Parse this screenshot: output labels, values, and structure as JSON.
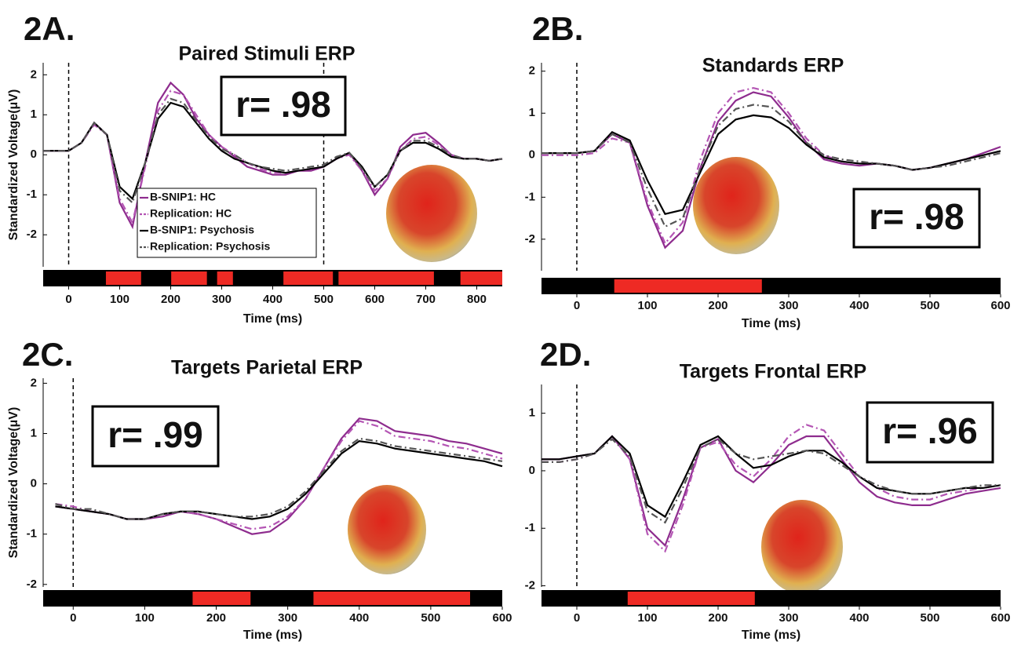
{
  "chart_data": [
    {
      "type": "line",
      "panel_label": "2A.",
      "title": "Paired Stimuli ERP",
      "annotation": "r= .98",
      "xlabel": "Time (ms)",
      "ylabel": "Standardized Voltage(μV)",
      "legend": "center left",
      "xlim": [
        -50,
        850
      ],
      "ylim": [
        -2.8,
        2.3
      ],
      "xticks": [
        0,
        100,
        200,
        300,
        400,
        500,
        600,
        700,
        800
      ],
      "yticks": [
        -2,
        -1,
        0,
        1,
        2
      ],
      "markers": [
        0,
        500
      ],
      "significant_intervals": [
        [
          73,
          142
        ],
        [
          201,
          271
        ],
        [
          291,
          322
        ],
        [
          421,
          518
        ],
        [
          529,
          716
        ],
        [
          768,
          850
        ]
      ],
      "x": [
        -50,
        -25,
        0,
        25,
        50,
        75,
        100,
        125,
        150,
        175,
        200,
        225,
        250,
        275,
        300,
        325,
        350,
        375,
        400,
        425,
        450,
        475,
        500,
        525,
        550,
        575,
        600,
        625,
        650,
        675,
        700,
        725,
        750,
        775,
        800,
        825,
        850
      ],
      "series": [
        {
          "name": "B-SNIP1: HC",
          "color": "#8e2c8e",
          "dash": "solid",
          "values": [
            0.1,
            0.1,
            0.1,
            0.3,
            0.8,
            0.5,
            -1.2,
            -1.8,
            -0.2,
            1.3,
            1.8,
            1.5,
            0.9,
            0.5,
            0.2,
            -0.05,
            -0.3,
            -0.4,
            -0.5,
            -0.5,
            -0.4,
            -0.4,
            -0.3,
            -0.1,
            0.05,
            -0.4,
            -1.0,
            -0.6,
            0.2,
            0.5,
            0.55,
            0.3,
            0.0,
            -0.1,
            -0.1,
            -0.15,
            -0.1
          ]
        },
        {
          "name": "Replication: HC",
          "color": "#b455b4",
          "dash": "dashdot",
          "values": [
            0.1,
            0.1,
            0.1,
            0.3,
            0.75,
            0.5,
            -1.1,
            -1.7,
            -0.3,
            1.1,
            1.6,
            1.5,
            1.0,
            0.5,
            0.2,
            0.0,
            -0.2,
            -0.35,
            -0.45,
            -0.45,
            -0.4,
            -0.35,
            -0.3,
            -0.1,
            0.0,
            -0.4,
            -0.9,
            -0.6,
            0.1,
            0.4,
            0.45,
            0.25,
            0.0,
            -0.1,
            -0.1,
            -0.15,
            -0.1
          ]
        },
        {
          "name": "B-SNIP1: Psychosis",
          "color": "#000000",
          "dash": "solid",
          "values": [
            0.1,
            0.1,
            0.1,
            0.3,
            0.8,
            0.5,
            -0.8,
            -1.1,
            -0.2,
            0.9,
            1.3,
            1.2,
            0.8,
            0.4,
            0.1,
            -0.1,
            -0.2,
            -0.3,
            -0.4,
            -0.45,
            -0.4,
            -0.35,
            -0.3,
            -0.1,
            0.05,
            -0.3,
            -0.8,
            -0.5,
            0.1,
            0.3,
            0.3,
            0.15,
            -0.05,
            -0.1,
            -0.1,
            -0.15,
            -0.1
          ]
        },
        {
          "name": "Replication: Psychosis",
          "color": "#555555",
          "dash": "dashdot",
          "values": [
            0.1,
            0.1,
            0.1,
            0.3,
            0.8,
            0.5,
            -0.9,
            -1.2,
            -0.2,
            1.0,
            1.4,
            1.3,
            0.85,
            0.45,
            0.15,
            0.0,
            -0.2,
            -0.3,
            -0.35,
            -0.4,
            -0.35,
            -0.3,
            -0.25,
            -0.05,
            0.05,
            -0.35,
            -0.8,
            -0.5,
            0.1,
            0.35,
            0.35,
            0.2,
            0.0,
            -0.1,
            -0.1,
            -0.15,
            -0.1
          ]
        }
      ]
    },
    {
      "type": "line",
      "panel_label": "2B.",
      "title": "Standards ERP",
      "annotation": "r= .98",
      "xlabel": "Time (ms)",
      "xlim": [
        -50,
        600
      ],
      "ylim": [
        -2.75,
        2.2
      ],
      "xticks": [
        0,
        100,
        200,
        300,
        400,
        500,
        600
      ],
      "yticks": [
        -2,
        -1,
        0,
        1,
        2
      ],
      "markers": [
        0
      ],
      "significant_intervals": [
        [
          53,
          262
        ]
      ],
      "x": [
        -50,
        -25,
        0,
        25,
        50,
        75,
        100,
        125,
        150,
        175,
        200,
        225,
        250,
        275,
        300,
        325,
        350,
        375,
        400,
        425,
        450,
        475,
        500,
        525,
        550,
        575,
        600
      ],
      "series": [
        {
          "color": "#8e2c8e",
          "dash": "solid",
          "values": [
            0.05,
            0.05,
            0.05,
            0.1,
            0.5,
            0.3,
            -1.2,
            -2.2,
            -1.8,
            -0.3,
            0.8,
            1.3,
            1.5,
            1.4,
            0.9,
            0.3,
            -0.1,
            -0.2,
            -0.25,
            -0.2,
            -0.25,
            -0.35,
            -0.3,
            -0.2,
            -0.1,
            0.05,
            0.2
          ]
        },
        {
          "color": "#b455b4",
          "dash": "dashdot",
          "values": [
            0,
            0,
            0,
            0.05,
            0.4,
            0.3,
            -1.1,
            -2.1,
            -1.6,
            -0.1,
            1.0,
            1.5,
            1.6,
            1.5,
            1.0,
            0.4,
            0.0,
            -0.15,
            -0.2,
            -0.2,
            -0.25,
            -0.35,
            -0.3,
            -0.2,
            -0.1,
            0.0,
            0.1
          ]
        },
        {
          "color": "#000000",
          "dash": "solid",
          "values": [
            0.05,
            0.05,
            0.05,
            0.1,
            0.55,
            0.35,
            -0.6,
            -1.4,
            -1.3,
            -0.4,
            0.5,
            0.85,
            0.95,
            0.9,
            0.65,
            0.25,
            -0.05,
            -0.15,
            -0.2,
            -0.2,
            -0.25,
            -0.35,
            -0.3,
            -0.2,
            -0.1,
            0.0,
            0.1
          ]
        },
        {
          "color": "#555555",
          "dash": "dashdot",
          "values": [
            0.05,
            0.05,
            0.05,
            0.1,
            0.5,
            0.3,
            -0.8,
            -1.7,
            -1.5,
            -0.3,
            0.7,
            1.1,
            1.2,
            1.15,
            0.8,
            0.3,
            0.0,
            -0.1,
            -0.15,
            -0.2,
            -0.25,
            -0.35,
            -0.3,
            -0.25,
            -0.15,
            -0.05,
            0.05
          ]
        }
      ]
    },
    {
      "type": "line",
      "panel_label": "2C.",
      "title": "Targets Parietal ERP",
      "annotation": "r= .99",
      "xlabel": "Time (ms)",
      "ylabel": "Standardized Voltage(μV)",
      "xlim": [
        -42,
        600
      ],
      "ylim": [
        -2.05,
        2.1
      ],
      "xticks": [
        0,
        100,
        200,
        300,
        400,
        500,
        600
      ],
      "yticks": [
        -2,
        -1,
        0,
        1,
        2
      ],
      "markers": [
        0
      ],
      "significant_intervals": [
        [
          167,
          248
        ],
        [
          336,
          555
        ]
      ],
      "x": [
        -25,
        0,
        25,
        50,
        75,
        100,
        125,
        150,
        175,
        200,
        225,
        250,
        275,
        300,
        325,
        350,
        375,
        400,
        425,
        450,
        475,
        500,
        525,
        550,
        575,
        600
      ],
      "series": [
        {
          "color": "#8e2c8e",
          "dash": "solid",
          "values": [
            -0.45,
            -0.5,
            -0.55,
            -0.6,
            -0.7,
            -0.7,
            -0.65,
            -0.55,
            -0.6,
            -0.7,
            -0.85,
            -1.0,
            -0.95,
            -0.7,
            -0.3,
            0.3,
            0.9,
            1.3,
            1.25,
            1.05,
            1.0,
            0.95,
            0.85,
            0.8,
            0.7,
            0.6
          ]
        },
        {
          "color": "#b455b4",
          "dash": "dashdot",
          "values": [
            -0.4,
            -0.45,
            -0.55,
            -0.6,
            -0.7,
            -0.7,
            -0.6,
            -0.55,
            -0.6,
            -0.7,
            -0.8,
            -0.9,
            -0.85,
            -0.65,
            -0.3,
            0.3,
            0.85,
            1.25,
            1.15,
            0.95,
            0.9,
            0.85,
            0.75,
            0.7,
            0.6,
            0.5
          ]
        },
        {
          "color": "#000000",
          "dash": "solid",
          "values": [
            -0.45,
            -0.5,
            -0.55,
            -0.6,
            -0.7,
            -0.7,
            -0.6,
            -0.55,
            -0.55,
            -0.6,
            -0.65,
            -0.7,
            -0.65,
            -0.5,
            -0.2,
            0.2,
            0.6,
            0.85,
            0.8,
            0.7,
            0.65,
            0.6,
            0.55,
            0.5,
            0.45,
            0.35
          ]
        },
        {
          "color": "#555555",
          "dash": "dashdot",
          "values": [
            -0.4,
            -0.5,
            -0.5,
            -0.6,
            -0.7,
            -0.7,
            -0.6,
            -0.55,
            -0.55,
            -0.6,
            -0.65,
            -0.65,
            -0.6,
            -0.45,
            -0.15,
            0.25,
            0.65,
            0.9,
            0.85,
            0.75,
            0.7,
            0.65,
            0.6,
            0.55,
            0.5,
            0.45
          ]
        }
      ]
    },
    {
      "type": "line",
      "panel_label": "2D.",
      "title": "Targets Frontal ERP",
      "annotation": "r= .96",
      "xlabel": "Time (ms)",
      "xlim": [
        -50,
        600
      ],
      "ylim": [
        -2.02,
        1.5
      ],
      "xticks": [
        0,
        100,
        200,
        300,
        400,
        500,
        600
      ],
      "yticks": [
        -2,
        -1,
        0,
        1
      ],
      "markers": [
        0
      ],
      "significant_intervals": [
        [
          72,
          252
        ]
      ],
      "x": [
        -50,
        -25,
        0,
        25,
        50,
        75,
        100,
        125,
        150,
        175,
        200,
        225,
        250,
        275,
        300,
        325,
        350,
        375,
        400,
        425,
        450,
        475,
        500,
        525,
        550,
        575,
        600
      ],
      "series": [
        {
          "color": "#8e2c8e",
          "dash": "solid",
          "values": [
            0.2,
            0.2,
            0.25,
            0.3,
            0.6,
            0.2,
            -1.0,
            -1.3,
            -0.5,
            0.4,
            0.55,
            0.0,
            -0.2,
            0.1,
            0.45,
            0.6,
            0.6,
            0.2,
            -0.2,
            -0.45,
            -0.55,
            -0.6,
            -0.6,
            -0.5,
            -0.4,
            -0.35,
            -0.3
          ]
        },
        {
          "color": "#b455b4",
          "dash": "dashdot",
          "values": [
            0.15,
            0.15,
            0.2,
            0.3,
            0.6,
            0.2,
            -1.1,
            -1.4,
            -0.6,
            0.4,
            0.5,
            0.1,
            -0.1,
            0.2,
            0.6,
            0.8,
            0.7,
            0.3,
            -0.1,
            -0.3,
            -0.45,
            -0.5,
            -0.5,
            -0.4,
            -0.35,
            -0.3,
            -0.25
          ]
        },
        {
          "color": "#000000",
          "dash": "solid",
          "values": [
            0.2,
            0.2,
            0.25,
            0.3,
            0.6,
            0.3,
            -0.6,
            -0.8,
            -0.2,
            0.45,
            0.6,
            0.3,
            0.05,
            0.1,
            0.25,
            0.35,
            0.35,
            0.15,
            -0.1,
            -0.3,
            -0.35,
            -0.4,
            -0.4,
            -0.35,
            -0.3,
            -0.3,
            -0.25
          ]
        },
        {
          "color": "#555555",
          "dash": "dashdot",
          "values": [
            0.15,
            0.15,
            0.2,
            0.3,
            0.55,
            0.25,
            -0.7,
            -0.9,
            -0.3,
            0.4,
            0.55,
            0.3,
            0.2,
            0.25,
            0.3,
            0.35,
            0.3,
            0.1,
            -0.1,
            -0.25,
            -0.35,
            -0.4,
            -0.4,
            -0.35,
            -0.3,
            -0.25,
            -0.25
          ]
        }
      ]
    }
  ]
}
